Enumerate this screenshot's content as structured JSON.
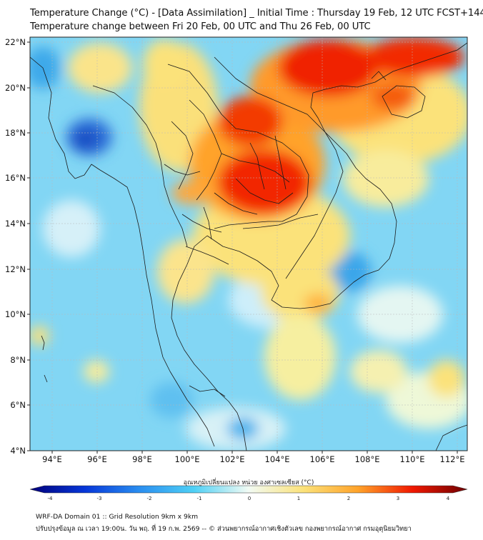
{
  "titles": {
    "line1": "Temperature Change (°C) - [Data Assimilation] _ Initial Time : Thursday 19 Feb, 12 UTC FCST+144",
    "line2": "Temperature change between Fri 20 Feb, 00 UTC and Thu 26 Feb, 00 UTC"
  },
  "map": {
    "lat_labels": [
      "22°N",
      "20°N",
      "18°N",
      "16°N",
      "14°N",
      "12°N",
      "10°N",
      "8°N",
      "6°N",
      "4°N"
    ],
    "lon_labels": [
      "94°E",
      "96°E",
      "98°E",
      "100°E",
      "102°E",
      "104°E",
      "106°E",
      "108°E",
      "110°E",
      "112°E"
    ],
    "lat_range": [
      4,
      22
    ],
    "lon_range": [
      93,
      112.3
    ]
  },
  "colorbar": {
    "label": "อุณหภูมิเปลี่ยนแปลง หน่วย องศาเซลเซียส (°C)",
    "ticks": [
      "-4",
      "-3",
      "-2",
      "-1",
      "0",
      "1",
      "2",
      "3",
      "4"
    ],
    "min": -4,
    "max": 4
  },
  "footer": {
    "line1": "WRF-DA Domain 01 :: Grid Resolution 9km x 9km",
    "line2": "ปรับปรุงข้อมูล ณ เวลา 19:00น. วัน พฤ. ที่ 19 ก.พ. 2569 -- © ส่วนพยากรณ์อากาศเชิงตัวเลข กองพยากรณ์อากาศ กรมอุตุนิยมวิทยา"
  },
  "colors": {
    "deep_blue": "#1f5fd8",
    "light_blue": "#7fd2f5",
    "white": "#f4fbf6",
    "yellow": "#fbe27a",
    "orange": "#ffa32a",
    "red": "#f01800",
    "border": "#222222"
  }
}
